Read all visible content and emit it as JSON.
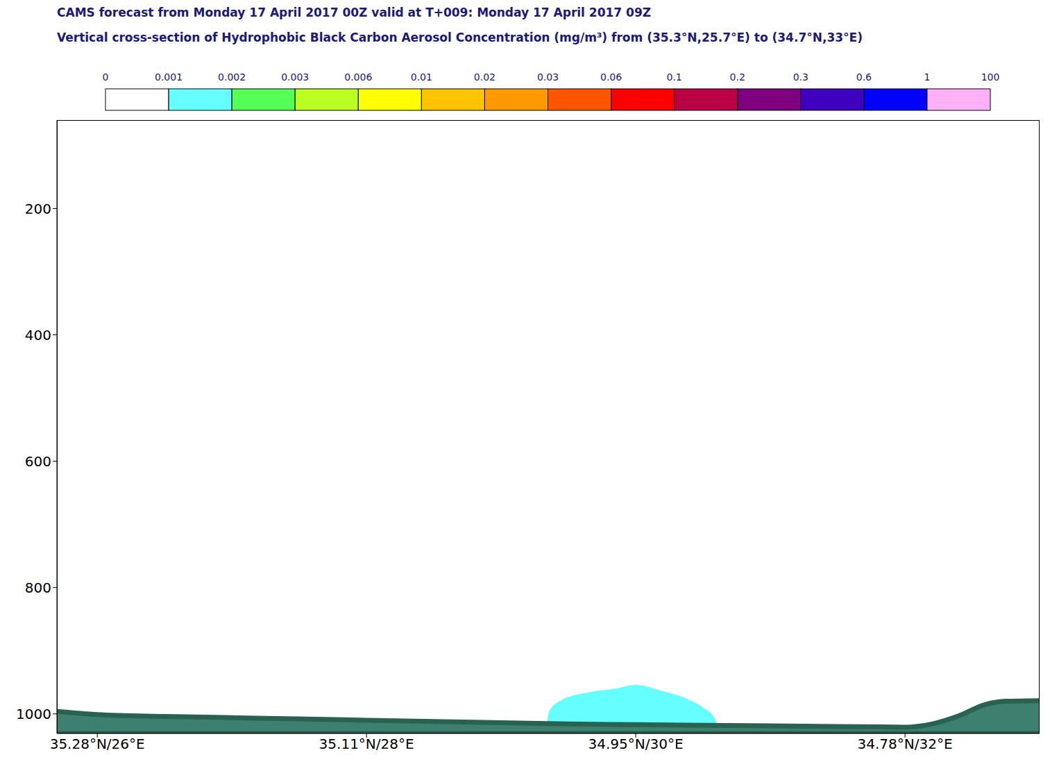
{
  "chart_data": {
    "type": "cross_section",
    "title": "CAMS forecast from Monday 17 April 2017 00Z valid at T+009: Monday 17 April 2017 09Z",
    "subtitle": "Vertical cross-section of Hydrophobic Black Carbon Aerosol Concentration (mg/m³) from (35.3°N,25.7°E) to (34.7°N,33°E)",
    "xlim": [
      25.7,
      33
    ],
    "xticks": [
      {
        "value": 26,
        "label": "35.28°N/26°E"
      },
      {
        "value": 28,
        "label": "35.11°N/28°E"
      },
      {
        "value": 30,
        "label": "34.95°N/30°E"
      },
      {
        "value": 32,
        "label": "34.78°N/32°E"
      }
    ],
    "ylim": [
      60,
      1031
    ],
    "yticks": [
      200,
      400,
      600,
      800,
      1000
    ],
    "colorbar": {
      "ticks": [
        0,
        0.001,
        0.002,
        0.003,
        0.006,
        0.01,
        0.02,
        0.03,
        0.06,
        0.1,
        0.2,
        0.3,
        0.6,
        1,
        100
      ],
      "colors": [
        "#ffffff",
        "#66ffff",
        "#55ff55",
        "#bbff22",
        "#ffff00",
        "#ffc400",
        "#ff9900",
        "#ff5500",
        "#ff0000",
        "#bb0044",
        "#7f007f",
        "#3f00bf",
        "#0000ff",
        "#ffb0f8"
      ]
    },
    "concentration": {
      "color": "#66ffff",
      "x": [
        29.33,
        29.36,
        29.45,
        29.65,
        29.85,
        30.0,
        30.2,
        30.38,
        30.5,
        30.58,
        30.62
      ],
      "top": [
        1026,
        995,
        978,
        966,
        960,
        954,
        964,
        976,
        990,
        1005,
        1026
      ],
      "bottom": [
        1026,
        1026,
        1026,
        1026,
        1026,
        1026,
        1026,
        1026,
        1026,
        1026,
        1026
      ]
    },
    "surface": {
      "color": "#3d8070",
      "x": [
        25.7,
        26,
        26.5,
        27,
        27.5,
        28,
        28.5,
        29,
        29.5,
        30,
        30.5,
        31,
        31.5,
        32,
        32.2,
        32.4,
        32.6,
        32.75,
        33
      ],
      "values": [
        996,
        1001,
        1004,
        1006,
        1008,
        1010,
        1012,
        1014,
        1016,
        1017,
        1018,
        1019,
        1020,
        1021,
        1016,
        1003,
        985,
        980,
        979
      ]
    }
  }
}
